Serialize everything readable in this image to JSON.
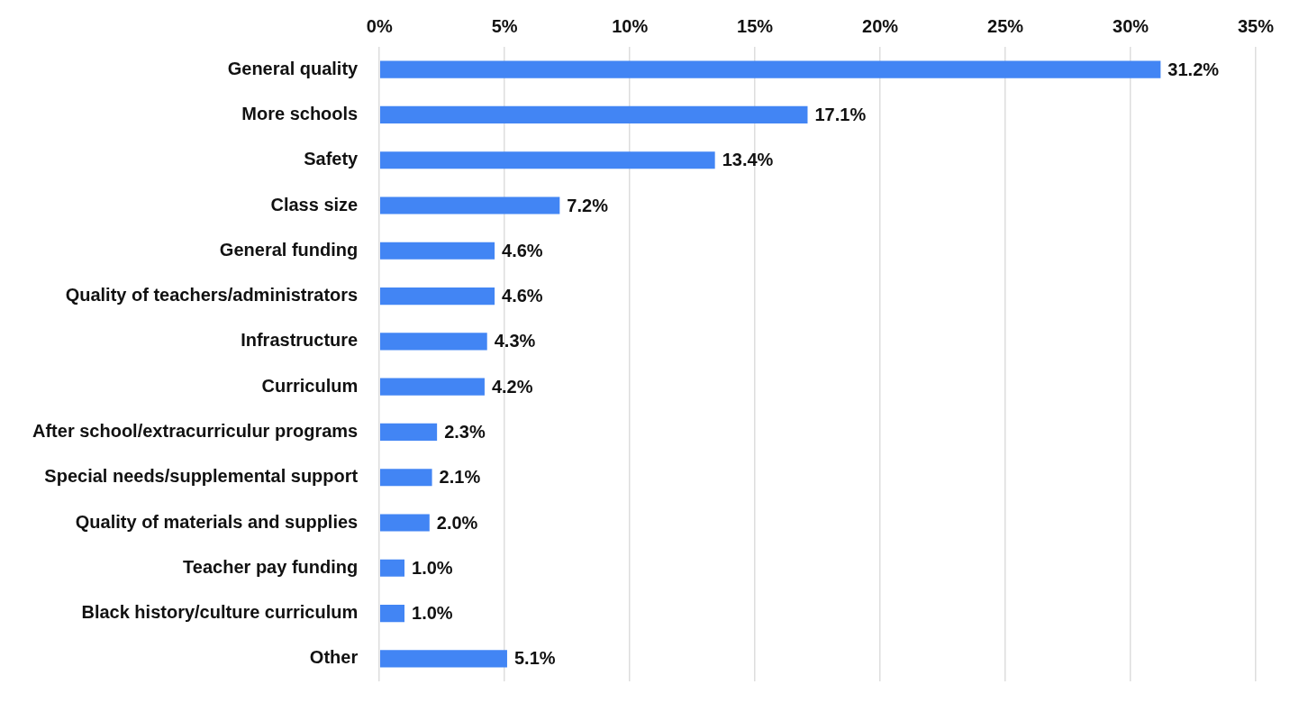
{
  "chart_data": {
    "type": "bar",
    "orientation": "horizontal",
    "categories": [
      "General quality",
      "More schools",
      "Safety",
      "Class size",
      "General funding",
      "Quality of teachers/administrators",
      "Infrastructure",
      "Curriculum",
      "After school/extracurriculur programs",
      "Special needs/supplemental support",
      "Quality of materials and supplies",
      "Teacher pay funding",
      "Black history/culture curriculum",
      "Other"
    ],
    "values": [
      31.2,
      17.1,
      13.4,
      7.2,
      4.6,
      4.6,
      4.3,
      4.2,
      2.3,
      2.1,
      2.0,
      1.0,
      1.0,
      5.1
    ],
    "value_labels": [
      "31.2%",
      "17.1%",
      "13.4%",
      "7.2%",
      "4.6%",
      "4.6%",
      "4.3%",
      "4.2%",
      "2.3%",
      "2.1%",
      "2.0%",
      "1.0%",
      "1.0%",
      "5.1%"
    ],
    "color": "#4285f4",
    "xlim": [
      0,
      35
    ],
    "xticks": [
      {
        "value": 0,
        "label": "0%"
      },
      {
        "value": 5,
        "label": "5%"
      },
      {
        "value": 10,
        "label": "10%"
      },
      {
        "value": 15,
        "label": "15%"
      },
      {
        "value": 20,
        "label": "20%"
      },
      {
        "value": 25,
        "label": "25%"
      },
      {
        "value": 30,
        "label": "30%"
      },
      {
        "value": 35,
        "label": "35%"
      }
    ],
    "grid": "x",
    "legend": false
  }
}
